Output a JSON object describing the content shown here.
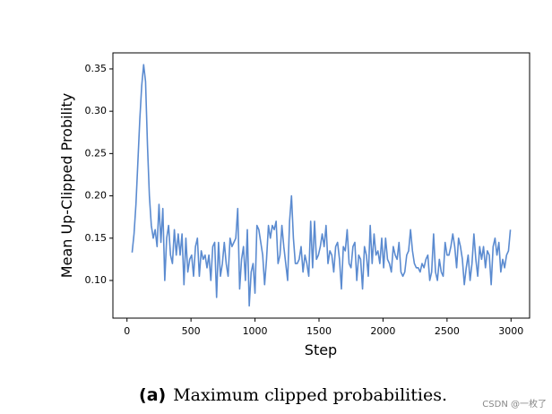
{
  "chart_data": {
    "type": "line",
    "xlabel": "Step",
    "ylabel": "Mean Up-Clipped Probility",
    "caption_label": "(a)",
    "caption": "Maximum clipped probabilities.",
    "watermark": "CSDN @一枚了",
    "color": "#5b8bd0",
    "xlim": [
      -110,
      3145
    ],
    "ylim": [
      0.0555,
      0.369
    ],
    "xticks": [
      0,
      500,
      1000,
      1500,
      2000,
      2500,
      3000
    ],
    "yticks": [
      {
        "value": 0.1,
        "label": "0.10"
      },
      0.15,
      {
        "value": 0.2,
        "label": "0.20"
      },
      0.25,
      {
        "value": 0.3,
        "label": "0.30"
      },
      0.35
    ],
    "x": [
      40,
      55,
      70,
      85,
      100,
      115,
      130,
      145,
      160,
      175,
      190,
      205,
      220,
      235,
      250,
      265,
      280,
      295,
      310,
      325,
      340,
      355,
      370,
      385,
      400,
      415,
      430,
      445,
      460,
      475,
      490,
      505,
      520,
      535,
      550,
      565,
      580,
      595,
      610,
      625,
      640,
      655,
      670,
      685,
      700,
      715,
      730,
      745,
      760,
      775,
      790,
      805,
      820,
      835,
      850,
      865,
      880,
      895,
      910,
      925,
      940,
      955,
      970,
      985,
      1000,
      1015,
      1030,
      1045,
      1060,
      1075,
      1090,
      1105,
      1120,
      1135,
      1150,
      1165,
      1180,
      1195,
      1210,
      1225,
      1240,
      1255,
      1270,
      1285,
      1300,
      1315,
      1330,
      1345,
      1360,
      1375,
      1390,
      1405,
      1420,
      1435,
      1450,
      1465,
      1480,
      1495,
      1510,
      1525,
      1540,
      1555,
      1570,
      1585,
      1600,
      1615,
      1630,
      1645,
      1660,
      1675,
      1690,
      1705,
      1720,
      1735,
      1750,
      1765,
      1780,
      1795,
      1810,
      1825,
      1840,
      1855,
      1870,
      1885,
      1900,
      1915,
      1930,
      1945,
      1960,
      1975,
      1990,
      2005,
      2020,
      2035,
      2050,
      2065,
      2080,
      2095,
      2110,
      2125,
      2140,
      2155,
      2170,
      2185,
      2200,
      2215,
      2230,
      2245,
      2260,
      2275,
      2290,
      2305,
      2320,
      2335,
      2350,
      2365,
      2380,
      2395,
      2410,
      2425,
      2440,
      2455,
      2470,
      2485,
      2500,
      2515,
      2530,
      2545,
      2560,
      2575,
      2590,
      2605,
      2620,
      2635,
      2650,
      2665,
      2680,
      2695,
      2710,
      2725,
      2740,
      2755,
      2770,
      2785,
      2800,
      2815,
      2830,
      2845,
      2860,
      2875,
      2890,
      2905,
      2920,
      2935,
      2950,
      2965,
      2980,
      2995
    ],
    "values": [
      0.133,
      0.155,
      0.19,
      0.24,
      0.29,
      0.33,
      0.355,
      0.335,
      0.26,
      0.2,
      0.165,
      0.15,
      0.16,
      0.14,
      0.19,
      0.145,
      0.185,
      0.1,
      0.15,
      0.165,
      0.13,
      0.12,
      0.16,
      0.13,
      0.155,
      0.13,
      0.155,
      0.095,
      0.15,
      0.11,
      0.125,
      0.13,
      0.105,
      0.14,
      0.15,
      0.105,
      0.135,
      0.125,
      0.13,
      0.115,
      0.13,
      0.1,
      0.14,
      0.145,
      0.08,
      0.145,
      0.105,
      0.12,
      0.145,
      0.12,
      0.105,
      0.15,
      0.14,
      0.145,
      0.15,
      0.185,
      0.09,
      0.125,
      0.14,
      0.1,
      0.16,
      0.07,
      0.11,
      0.12,
      0.085,
      0.165,
      0.16,
      0.145,
      0.13,
      0.095,
      0.125,
      0.165,
      0.15,
      0.165,
      0.16,
      0.17,
      0.12,
      0.13,
      0.165,
      0.14,
      0.12,
      0.1,
      0.17,
      0.2,
      0.15,
      0.12,
      0.12,
      0.125,
      0.14,
      0.11,
      0.13,
      0.12,
      0.105,
      0.17,
      0.115,
      0.17,
      0.125,
      0.13,
      0.14,
      0.155,
      0.14,
      0.165,
      0.12,
      0.135,
      0.13,
      0.11,
      0.14,
      0.145,
      0.125,
      0.09,
      0.14,
      0.135,
      0.16,
      0.12,
      0.115,
      0.14,
      0.145,
      0.1,
      0.13,
      0.125,
      0.09,
      0.14,
      0.13,
      0.105,
      0.165,
      0.12,
      0.155,
      0.13,
      0.135,
      0.12,
      0.15,
      0.115,
      0.15,
      0.125,
      0.12,
      0.11,
      0.14,
      0.13,
      0.125,
      0.145,
      0.11,
      0.105,
      0.11,
      0.13,
      0.135,
      0.16,
      0.135,
      0.12,
      0.115,
      0.115,
      0.11,
      0.12,
      0.115,
      0.125,
      0.13,
      0.1,
      0.11,
      0.155,
      0.11,
      0.1,
      0.125,
      0.11,
      0.105,
      0.145,
      0.13,
      0.13,
      0.14,
      0.155,
      0.14,
      0.115,
      0.15,
      0.14,
      0.125,
      0.095,
      0.115,
      0.13,
      0.1,
      0.12,
      0.155,
      0.125,
      0.105,
      0.14,
      0.125,
      0.14,
      0.115,
      0.135,
      0.13,
      0.095,
      0.14,
      0.15,
      0.13,
      0.145,
      0.11,
      0.125,
      0.115,
      0.13,
      0.135,
      0.16
    ]
  }
}
